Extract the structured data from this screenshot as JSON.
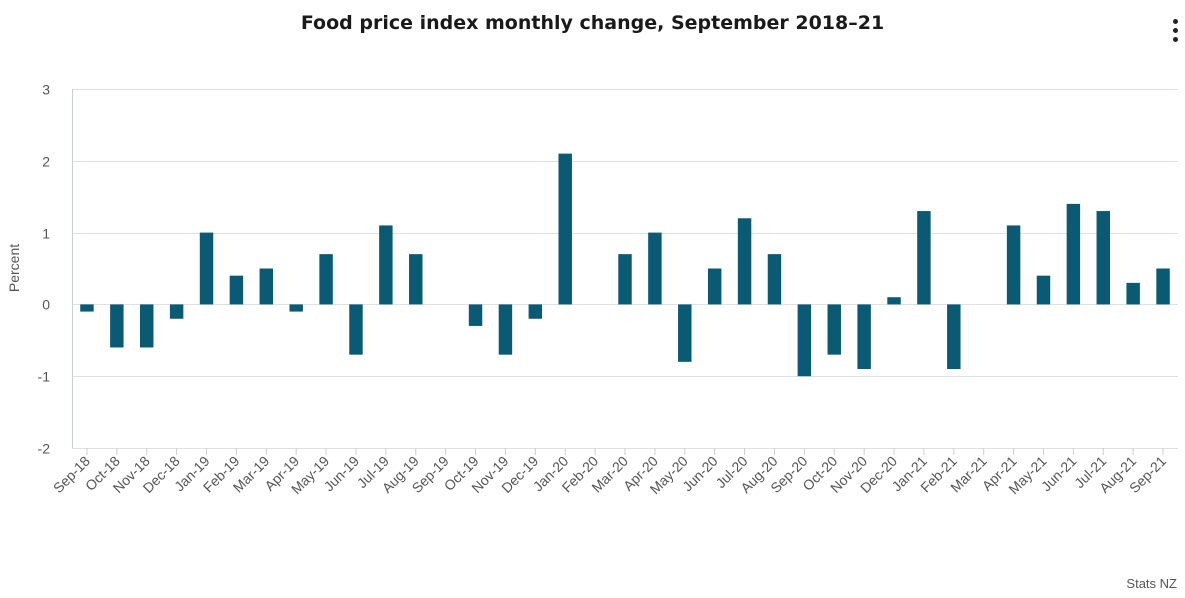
{
  "chart": {
    "title": "Food price index monthly change, September 2018–21",
    "credit": "Stats NZ",
    "menu_icon": "vertical-ellipsis-icon"
  },
  "chart_data": {
    "type": "bar",
    "title": "Food price index monthly change, September 2018–21",
    "xlabel": "",
    "ylabel": "Percent",
    "ylim": [
      -2,
      3
    ],
    "yticks": [
      -2,
      -1,
      0,
      1,
      2,
      3
    ],
    "grid": true,
    "legend": "none",
    "bar_color": "#0b5a73",
    "categories": [
      "Sep-18",
      "Oct-18",
      "Nov-18",
      "Dec-18",
      "Jan-19",
      "Feb-19",
      "Mar-19",
      "Apr-19",
      "May-19",
      "Jun-19",
      "Jul-19",
      "Aug-19",
      "Sep-19",
      "Oct-19",
      "Nov-19",
      "Dec-19",
      "Jan-20",
      "Feb-20",
      "Mar-20",
      "Apr-20",
      "May-20",
      "Jun-20",
      "Jul-20",
      "Aug-20",
      "Sep-20",
      "Oct-20",
      "Nov-20",
      "Dec-20",
      "Jan-21",
      "Feb-21",
      "Mar-21",
      "Apr-21",
      "May-21",
      "Jun-21",
      "Jul-21",
      "Aug-21",
      "Sep-21"
    ],
    "values": [
      -0.1,
      -0.6,
      -0.6,
      -0.2,
      1.0,
      0.4,
      0.5,
      -0.1,
      0.7,
      -0.7,
      1.1,
      0.7,
      0.0,
      -0.3,
      -0.7,
      -0.2,
      2.1,
      0.0,
      0.7,
      1.0,
      -0.8,
      0.5,
      1.2,
      0.7,
      -1.0,
      -0.7,
      -0.9,
      0.1,
      1.3,
      -0.9,
      0.0,
      1.1,
      0.4,
      1.4,
      1.3,
      0.3,
      0.5
    ]
  }
}
